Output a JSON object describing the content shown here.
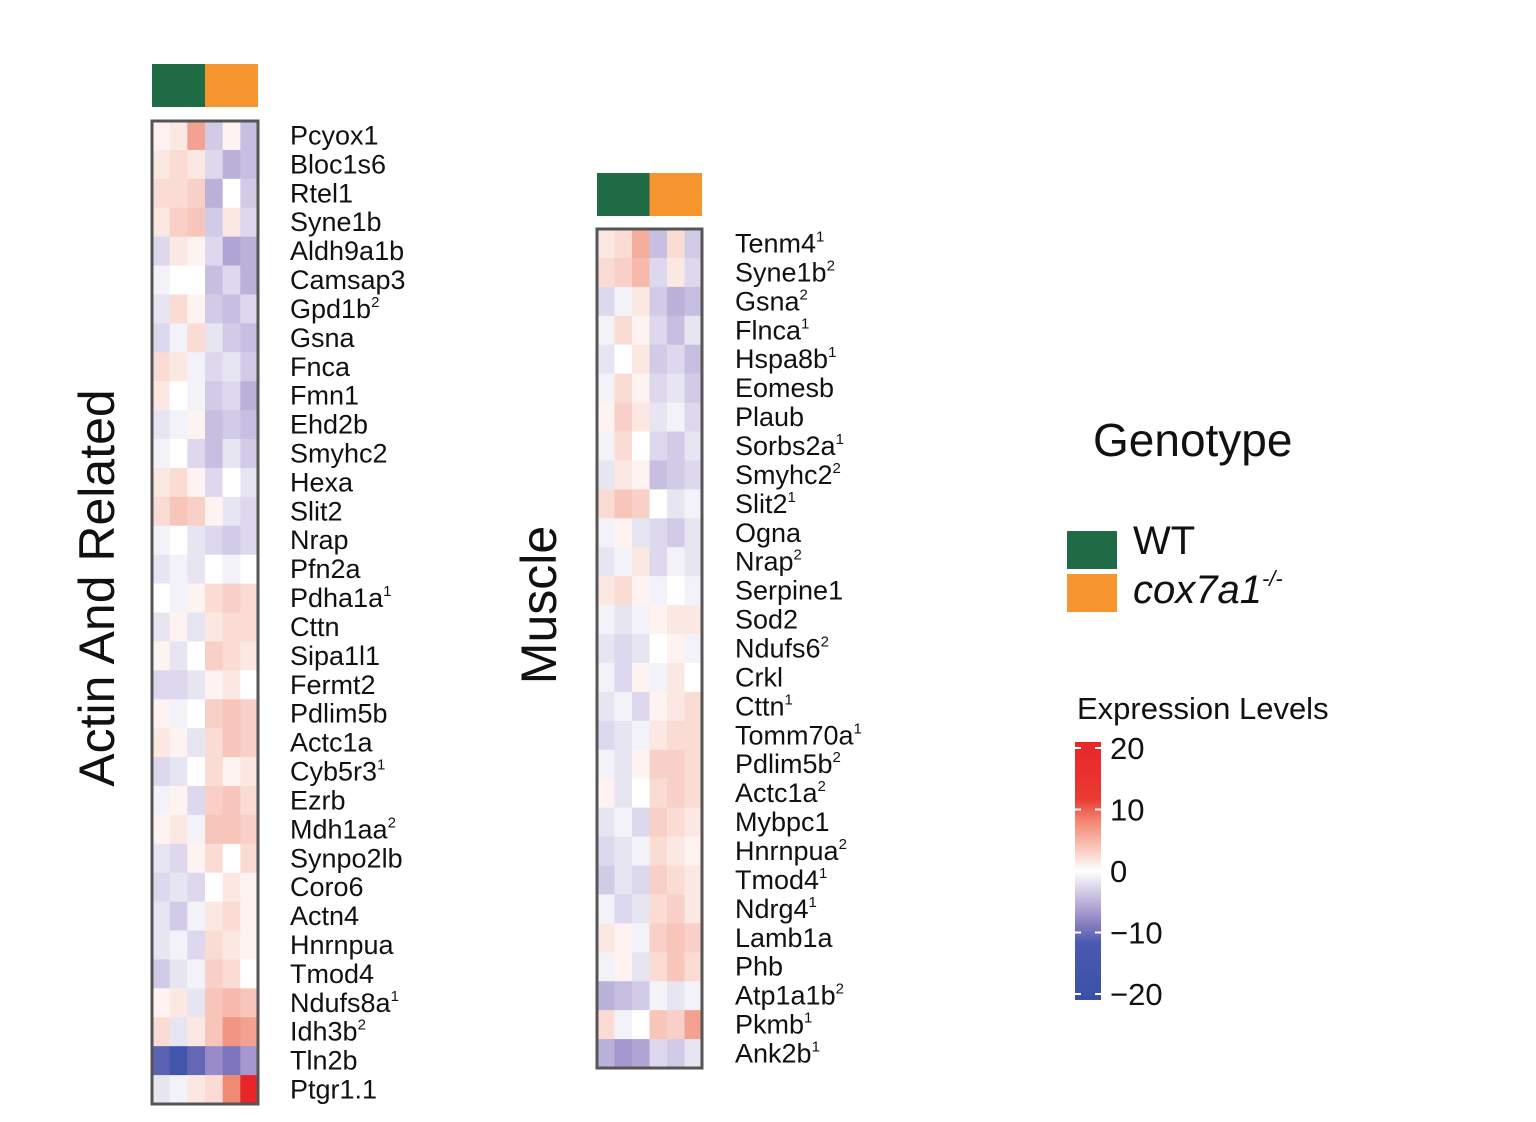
{
  "chart_data": [
    {
      "type": "heatmap",
      "title": "Actin And Related",
      "columns": [
        "WT",
        "WT",
        "WT",
        "cox7a1-/-",
        "cox7a1-/-",
        "cox7a1-/-"
      ],
      "column_groups": [
        "WT",
        "cox7a1-/-"
      ],
      "rows": [
        {
          "gene": "Pcyox1",
          "sup": "",
          "values": [
            1,
            2,
            8,
            -4,
            1,
            -5
          ]
        },
        {
          "gene": "Bloc1s6",
          "sup": "",
          "values": [
            2,
            3,
            2,
            -3,
            -6,
            -5
          ]
        },
        {
          "gene": "Rtel1",
          "sup": "",
          "values": [
            3,
            3,
            4,
            -6,
            0,
            -4
          ]
        },
        {
          "gene": "Syne1b",
          "sup": "",
          "values": [
            2,
            4,
            5,
            -4,
            2,
            -3
          ]
        },
        {
          "gene": "Aldh9a1b",
          "sup": "",
          "values": [
            -3,
            2,
            1,
            -3,
            -7,
            -6
          ]
        },
        {
          "gene": "Camsap3",
          "sup": "",
          "values": [
            -1,
            0,
            0,
            -5,
            -3,
            -6
          ]
        },
        {
          "gene": "Gpd1b",
          "sup": "2",
          "values": [
            -2,
            3,
            1,
            -4,
            -5,
            -3
          ]
        },
        {
          "gene": "Gsna",
          "sup": "",
          "values": [
            -3,
            -1,
            3,
            -2,
            -4,
            -5
          ]
        },
        {
          "gene": "Fnca",
          "sup": "",
          "values": [
            3,
            2,
            -1,
            -3,
            -2,
            -4
          ]
        },
        {
          "gene": "Fmn1",
          "sup": "",
          "values": [
            2,
            0,
            -1,
            -4,
            -3,
            -6
          ]
        },
        {
          "gene": "Ehd2b",
          "sup": "",
          "values": [
            -2,
            -1,
            1,
            -5,
            -4,
            -5
          ]
        },
        {
          "gene": "Smyhc2",
          "sup": "",
          "values": [
            -1,
            0,
            -3,
            -5,
            -2,
            -4
          ]
        },
        {
          "gene": "Hexa",
          "sup": "",
          "values": [
            2,
            3,
            1,
            -3,
            0,
            -2
          ]
        },
        {
          "gene": "Slit2",
          "sup": "",
          "values": [
            3,
            5,
            4,
            1,
            -2,
            -3
          ]
        },
        {
          "gene": "Nrap",
          "sup": "",
          "values": [
            -1,
            0,
            -2,
            -3,
            -4,
            -3
          ]
        },
        {
          "gene": "Pfn2a",
          "sup": "",
          "values": [
            -2,
            -1,
            -2,
            0,
            -1,
            0
          ]
        },
        {
          "gene": "Pdha1a",
          "sup": "1",
          "values": [
            0,
            -1,
            1,
            3,
            4,
            3
          ]
        },
        {
          "gene": "Cttn",
          "sup": "",
          "values": [
            -2,
            1,
            -2,
            2,
            3,
            3
          ]
        },
        {
          "gene": "Sipa1l1",
          "sup": "",
          "values": [
            1,
            -2,
            0,
            4,
            3,
            2
          ]
        },
        {
          "gene": "Fermt2",
          "sup": "",
          "values": [
            -3,
            -3,
            -2,
            1,
            2,
            0
          ]
        },
        {
          "gene": "Pdlim5b",
          "sup": "",
          "values": [
            1,
            -1,
            0,
            4,
            5,
            4
          ]
        },
        {
          "gene": "Actc1a",
          "sup": "",
          "values": [
            2,
            1,
            -2,
            3,
            5,
            4
          ]
        },
        {
          "gene": "Cyb5r3",
          "sup": "1",
          "values": [
            -3,
            -2,
            0,
            3,
            1,
            2
          ]
        },
        {
          "gene": "Ezrb",
          "sup": "",
          "values": [
            -1,
            1,
            -3,
            4,
            5,
            3
          ]
        },
        {
          "gene": "Mdh1aa",
          "sup": "2",
          "values": [
            1,
            2,
            -1,
            5,
            5,
            4
          ]
        },
        {
          "gene": "Synpo2lb",
          "sup": "",
          "values": [
            -2,
            -3,
            1,
            3,
            0,
            3
          ]
        },
        {
          "gene": "Coro6",
          "sup": "",
          "values": [
            -3,
            -2,
            -3,
            0,
            2,
            1
          ]
        },
        {
          "gene": "Actn4",
          "sup": "",
          "values": [
            -2,
            -4,
            -1,
            2,
            3,
            1
          ]
        },
        {
          "gene": "Hnrnpua",
          "sup": "",
          "values": [
            -2,
            -1,
            -3,
            3,
            2,
            1
          ]
        },
        {
          "gene": "Tmod4",
          "sup": "",
          "values": [
            -4,
            -2,
            -1,
            4,
            3,
            0
          ]
        },
        {
          "gene": "Ndufs8a",
          "sup": "1",
          "values": [
            1,
            2,
            -2,
            5,
            6,
            5
          ]
        },
        {
          "gene": "Idh3b",
          "sup": "2",
          "values": [
            3,
            -2,
            2,
            5,
            9,
            8
          ]
        },
        {
          "gene": "Tln2b",
          "sup": "",
          "values": [
            -16,
            -19,
            -15,
            -9,
            -12,
            -8
          ]
        },
        {
          "gene": "Ptgr1.1",
          "sup": "",
          "values": [
            -2,
            -1,
            2,
            3,
            10,
            20
          ]
        }
      ]
    },
    {
      "type": "heatmap",
      "title": "Muscle",
      "columns": [
        "WT",
        "WT",
        "WT",
        "cox7a1-/-",
        "cox7a1-/-",
        "cox7a1-/-"
      ],
      "column_groups": [
        "WT",
        "cox7a1-/-"
      ],
      "rows": [
        {
          "gene": "Tenm4",
          "sup": "1",
          "values": [
            2,
            3,
            7,
            -5,
            3,
            -4
          ]
        },
        {
          "gene": "Syne1b",
          "sup": "2",
          "values": [
            3,
            4,
            6,
            -3,
            2,
            -3
          ]
        },
        {
          "gene": "Gsna",
          "sup": "2",
          "values": [
            -3,
            -1,
            2,
            -4,
            -6,
            -5
          ]
        },
        {
          "gene": "Flnca",
          "sup": "1",
          "values": [
            -1,
            3,
            1,
            -3,
            -5,
            -2
          ]
        },
        {
          "gene": "Hspa8b",
          "sup": "1",
          "values": [
            -2,
            0,
            2,
            -4,
            -3,
            -5
          ]
        },
        {
          "gene": "Eomesb",
          "sup": "",
          "values": [
            -1,
            3,
            1,
            -3,
            -2,
            -4
          ]
        },
        {
          "gene": "Plaub",
          "sup": "",
          "values": [
            1,
            4,
            2,
            -2,
            -1,
            -3
          ]
        },
        {
          "gene": "Sorbs2a",
          "sup": "1",
          "values": [
            -1,
            3,
            0,
            -3,
            -4,
            -2
          ]
        },
        {
          "gene": "Smyhc2",
          "sup": "2",
          "values": [
            -2,
            2,
            1,
            -5,
            -4,
            -3
          ]
        },
        {
          "gene": "Slit2",
          "sup": "1",
          "values": [
            3,
            5,
            4,
            0,
            -2,
            -1
          ]
        },
        {
          "gene": "Ogna",
          "sup": "",
          "values": [
            -1,
            1,
            -2,
            -3,
            -4,
            -2
          ]
        },
        {
          "gene": "Nrap",
          "sup": "2",
          "values": [
            -2,
            -1,
            2,
            -3,
            -1,
            -2
          ]
        },
        {
          "gene": "Serpine1",
          "sup": "",
          "values": [
            2,
            3,
            1,
            -1,
            0,
            -1
          ]
        },
        {
          "gene": "Sod2",
          "sup": "",
          "values": [
            -1,
            -2,
            -1,
            1,
            2,
            2
          ]
        },
        {
          "gene": "Ndufs6",
          "sup": "2",
          "values": [
            -2,
            -3,
            -2,
            0,
            1,
            -1
          ]
        },
        {
          "gene": "Crkl",
          "sup": "",
          "values": [
            -1,
            -3,
            1,
            -1,
            2,
            0
          ]
        },
        {
          "gene": "Cttn",
          "sup": "1",
          "values": [
            -2,
            -1,
            -3,
            1,
            2,
            3
          ]
        },
        {
          "gene": "Tomm70a",
          "sup": "1",
          "values": [
            -3,
            -2,
            -1,
            2,
            3,
            3
          ]
        },
        {
          "gene": "Pdlim5b",
          "sup": "2",
          "values": [
            -1,
            -2,
            1,
            4,
            4,
            3
          ]
        },
        {
          "gene": "Actc1a",
          "sup": "2",
          "values": [
            1,
            -2,
            0,
            3,
            4,
            3
          ]
        },
        {
          "gene": "Mybpc1",
          "sup": "",
          "values": [
            -2,
            -1,
            -3,
            4,
            3,
            2
          ]
        },
        {
          "gene": "Hnrnpua",
          "sup": "2",
          "values": [
            -3,
            -2,
            -1,
            3,
            2,
            1
          ]
        },
        {
          "gene": "Tmod4",
          "sup": "1",
          "values": [
            -4,
            -2,
            -3,
            4,
            3,
            2
          ]
        },
        {
          "gene": "Ndrg4",
          "sup": "1",
          "values": [
            -1,
            -3,
            -2,
            3,
            4,
            2
          ]
        },
        {
          "gene": "Lamb1a",
          "sup": "",
          "values": [
            2,
            1,
            -1,
            4,
            5,
            4
          ]
        },
        {
          "gene": "Phb",
          "sup": "",
          "values": [
            -1,
            1,
            -2,
            3,
            5,
            3
          ]
        },
        {
          "gene": "Atp1a1b",
          "sup": "2",
          "values": [
            -6,
            -5,
            -4,
            -1,
            -2,
            -1
          ]
        },
        {
          "gene": "Pkmb",
          "sup": "1",
          "values": [
            3,
            -1,
            0,
            5,
            4,
            8
          ]
        },
        {
          "gene": "Ank2b",
          "sup": "1",
          "values": [
            -6,
            -8,
            -7,
            -3,
            -4,
            -2
          ]
        }
      ]
    }
  ],
  "legend": {
    "title": "Genotype",
    "items": [
      {
        "label": "WT",
        "color": "#1e6b46"
      },
      {
        "label": "cox7a1",
        "label_sup": "-/-",
        "color": "#f7952e"
      }
    ]
  },
  "colorbar": {
    "title": "Expression Levels",
    "range": [
      -20,
      20
    ],
    "ticks": [
      {
        "value": 20,
        "label": "20"
      },
      {
        "value": 10,
        "label": "10"
      },
      {
        "value": 0,
        "label": "0"
      },
      {
        "value": -10,
        "label": "−10"
      },
      {
        "value": -20,
        "label": "−20"
      }
    ],
    "colors": {
      "low": "#3b50a8",
      "mid_low": "#9a8cc8",
      "mid": "#ffffff",
      "mid_high": "#f49a80",
      "high": "#e8262a"
    }
  }
}
